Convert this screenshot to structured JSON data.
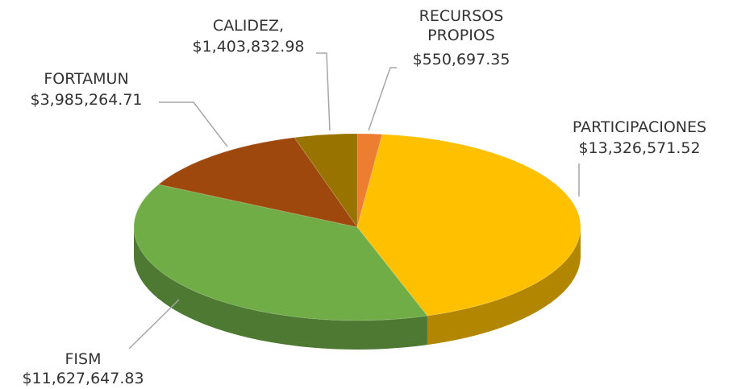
{
  "chart_data": {
    "type": "pie",
    "categories": [
      "RECURSOS PROPIOS",
      "PARTICIPACIONES",
      "FISM",
      "FORTAMUN",
      "CALIDEZ,"
    ],
    "values": [
      550697.35,
      13326571.52,
      11627647.83,
      3985264.71,
      1403832.98
    ],
    "value_labels": [
      "$550,697.35",
      "$13,326,571.52",
      "$11,627,647.83",
      "$3,985,264.71",
      "$1,403,832.98"
    ],
    "colors": [
      "#ed7d31",
      "#ffc000",
      "#70ad47",
      "#9e480e",
      "#997300"
    ]
  }
}
